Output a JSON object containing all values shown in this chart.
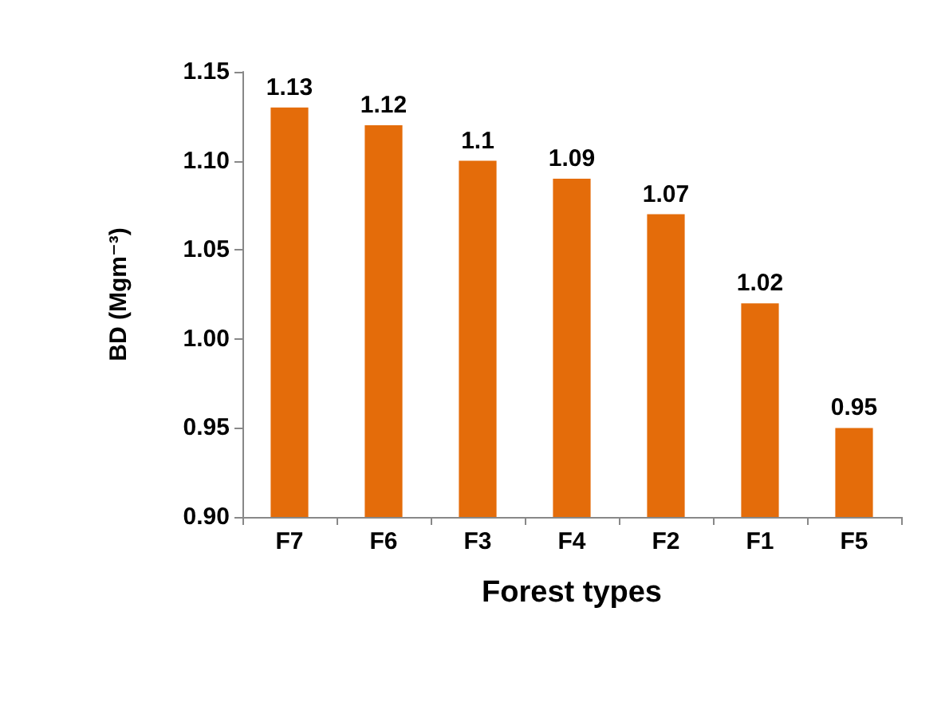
{
  "chart_data": {
    "type": "bar",
    "xlabel": "Forest types",
    "ylabel": "BD (Mgm⁻³)",
    "categories": [
      "F7",
      "F6",
      "F3",
      "F4",
      "F2",
      "F1",
      "F5"
    ],
    "values": [
      1.13,
      1.12,
      1.1,
      1.09,
      1.07,
      1.02,
      0.95
    ],
    "color": "#e46c0a",
    "ylim": [
      0.9,
      1.15
    ],
    "yticks": [
      {
        "value": 0.9,
        "label": "0.90"
      },
      {
        "value": 0.95,
        "label": "0.95"
      },
      {
        "value": 1.0,
        "label": "1.00"
      },
      {
        "value": 1.05,
        "label": "1.05"
      },
      {
        "value": 1.1,
        "label": "1.10"
      },
      {
        "value": 1.15,
        "label": "1.15"
      }
    ],
    "data_labels": true,
    "grid": false
  }
}
